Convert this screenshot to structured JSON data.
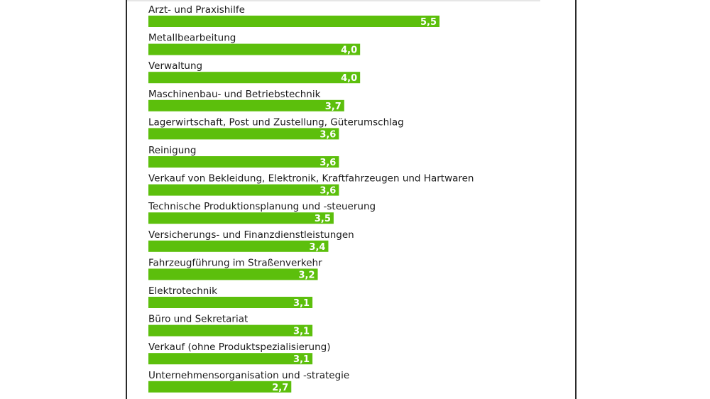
{
  "chart_data": {
    "type": "bar",
    "orientation": "horizontal",
    "bar_color": "#5cbf0c",
    "categories": [
      "Arzt- und Praxishilfe",
      "Metallbearbeitung",
      "Verwaltung",
      "Maschinenbau- und Betriebstechnik",
      "Lagerwirtschaft, Post und Zustellung, Güterumschlag",
      "Reinigung",
      "Verkauf von Bekleidung, Elektronik, Kraftfahrzeugen und Hartwaren",
      "Technische Produktionsplanung und -steuerung",
      "Versicherungs- und Finanzdienstleistungen",
      "Fahrzeugführung im Straßenverkehr",
      "Elektrotechnik",
      "Büro und Sekretariat",
      "Verkauf (ohne Produktspezialisierung)",
      "Unternehmensorganisation und -strategie"
    ],
    "values": [
      5.5,
      4.0,
      4.0,
      3.7,
      3.6,
      3.6,
      3.6,
      3.5,
      3.4,
      3.2,
      3.1,
      3.1,
      3.1,
      2.7
    ],
    "value_labels": [
      "5,5",
      "4,0",
      "4,0",
      "3,7",
      "3,6",
      "3,6",
      "3,6",
      "3,5",
      "3,4",
      "3,2",
      "3,1",
      "3,1",
      "3,1",
      "2,7"
    ]
  }
}
